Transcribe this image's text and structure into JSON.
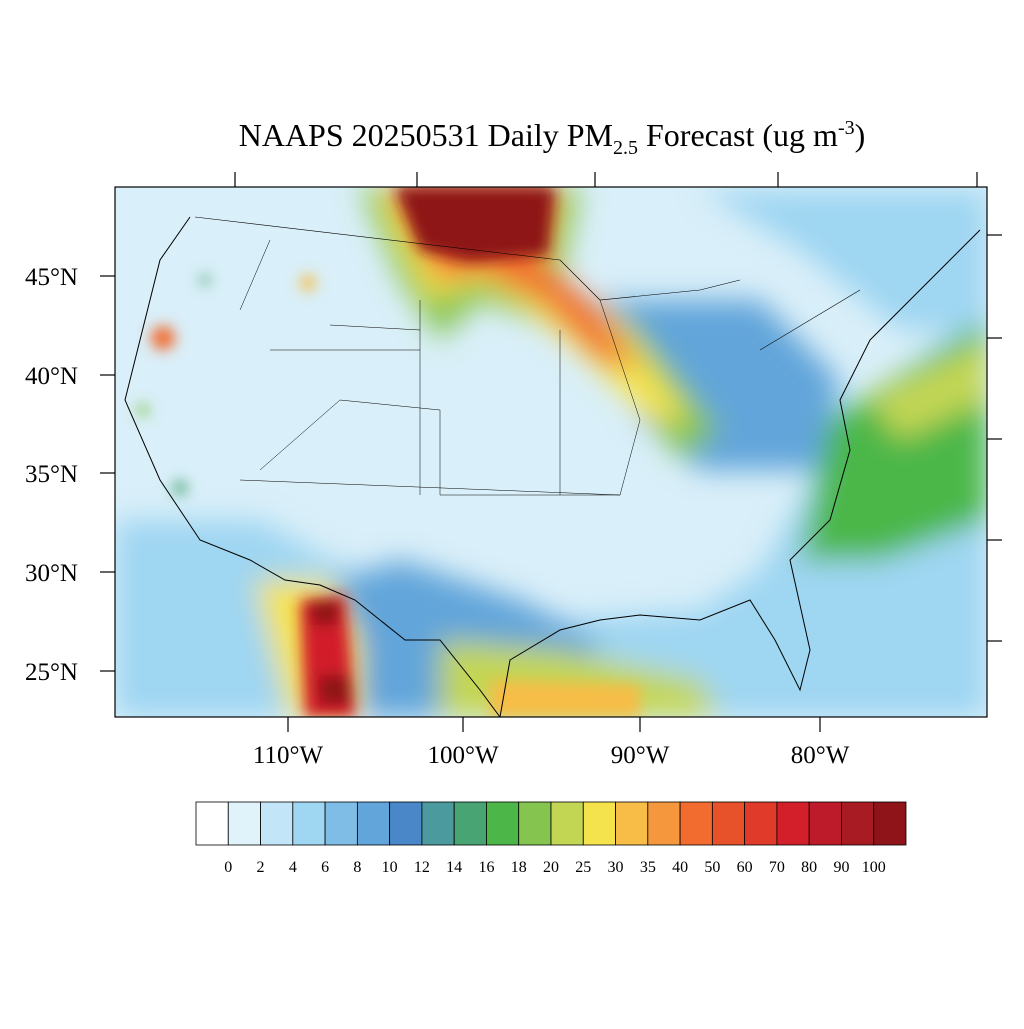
{
  "title": {
    "main": "NAAPS 20250531 Daily PM",
    "subscript": "2.5",
    "unit": " Forecast (ug m",
    "superscript": "-3",
    "close": ")"
  },
  "lat_labels": [
    "45°N",
    "40°N",
    "35°N",
    "30°N",
    "25°N"
  ],
  "lon_labels": [
    "110°W",
    "100°W",
    "90°W",
    "80°W"
  ],
  "colorbar": {
    "colors": [
      "#ffffff",
      "#e0f3fb",
      "#c2e6f7",
      "#9fd6f2",
      "#7fbde6",
      "#62a5da",
      "#4a87c8",
      "#4a9a9e",
      "#48a473",
      "#4cb748",
      "#84c44f",
      "#c3d654",
      "#f5e34e",
      "#f7bd46",
      "#f5983d",
      "#f26b2f",
      "#e7522b",
      "#df3a2a",
      "#d21f2a",
      "#be1b2a",
      "#a81b23",
      "#8e1419"
    ],
    "labels": [
      0,
      2,
      4,
      6,
      8,
      10,
      12,
      14,
      16,
      18,
      20,
      25,
      30,
      35,
      40,
      50,
      60,
      70,
      80,
      90,
      100
    ]
  }
}
